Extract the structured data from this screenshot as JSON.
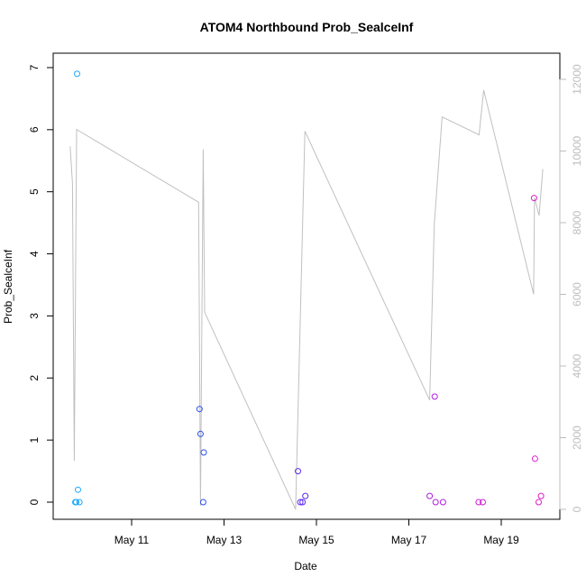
{
  "chart_data": {
    "type": "scatter",
    "title": "ATOM4 Northbound Prob_SealceInf",
    "xlabel": "Date",
    "ylabel": "Prob_SealceInf",
    "x_domain_days": [
      9.5,
      19.93
    ],
    "x_ticks": [
      {
        "value": 11,
        "label": "May 11"
      },
      {
        "value": 13,
        "label": "May 13"
      },
      {
        "value": 15,
        "label": "May 15"
      },
      {
        "value": 17,
        "label": "May 17"
      },
      {
        "value": 19,
        "label": "May 19"
      }
    ],
    "ylim": [
      0,
      7
    ],
    "y_ticks": [
      0,
      1,
      2,
      3,
      4,
      5,
      6,
      7
    ],
    "y2_ticks": [
      0,
      2000,
      4000,
      6000,
      8000,
      10000,
      12000
    ],
    "y2lim": [
      0,
      12000
    ],
    "line_color": "#c0c0c0",
    "points": [
      {
        "x": 9.78,
        "y": 0.0,
        "color": "#1aa7ff"
      },
      {
        "x": 9.82,
        "y": 6.9,
        "color": "#1aa7ff"
      },
      {
        "x": 9.84,
        "y": 0.2,
        "color": "#1aa7ff"
      },
      {
        "x": 9.87,
        "y": 0.0,
        "color": "#1aa7ff"
      },
      {
        "x": 9.8,
        "y": 0.0,
        "color": "#1aa7ff"
      },
      {
        "x": 12.47,
        "y": 1.5,
        "color": "#2a4ff0"
      },
      {
        "x": 12.49,
        "y": 1.1,
        "color": "#2a4ff0"
      },
      {
        "x": 12.56,
        "y": 0.8,
        "color": "#2a4ff0"
      },
      {
        "x": 12.55,
        "y": 0.0,
        "color": "#2a4ff0"
      },
      {
        "x": 14.6,
        "y": 0.5,
        "color": "#5b2bf0"
      },
      {
        "x": 14.65,
        "y": 0.0,
        "color": "#5b2bf0"
      },
      {
        "x": 14.7,
        "y": 0.0,
        "color": "#5b2bf0"
      },
      {
        "x": 14.76,
        "y": 0.1,
        "color": "#5b2bf0"
      },
      {
        "x": 17.45,
        "y": 0.1,
        "color": "#b01ee0"
      },
      {
        "x": 17.56,
        "y": 1.7,
        "color": "#b01ee0"
      },
      {
        "x": 17.58,
        "y": 0.0,
        "color": "#b01ee0"
      },
      {
        "x": 17.74,
        "y": 0.0,
        "color": "#b01ee0"
      },
      {
        "x": 18.51,
        "y": 0.0,
        "color": "#cc1ed0"
      },
      {
        "x": 18.6,
        "y": 0.0,
        "color": "#cc1ed0"
      },
      {
        "x": 19.71,
        "y": 4.9,
        "color": "#e01ec8"
      },
      {
        "x": 19.73,
        "y": 0.7,
        "color": "#e01ec8"
      },
      {
        "x": 19.81,
        "y": 0.0,
        "color": "#e01ec8"
      },
      {
        "x": 19.86,
        "y": 0.1,
        "color": "#e01ec8"
      }
    ],
    "series_line": [
      {
        "x": 9.67,
        "y2": 10130
      },
      {
        "x": 9.72,
        "y2": 9100
      },
      {
        "x": 9.76,
        "y2": 1350
      },
      {
        "x": 9.81,
        "y2": 10600
      },
      {
        "x": 12.45,
        "y2": 8570
      },
      {
        "x": 12.49,
        "y2": 100
      },
      {
        "x": 12.55,
        "y2": 10050
      },
      {
        "x": 12.58,
        "y2": 5500
      },
      {
        "x": 14.55,
        "y2": 0
      },
      {
        "x": 14.75,
        "y2": 10550
      },
      {
        "x": 17.45,
        "y2": 3050
      },
      {
        "x": 17.55,
        "y2": 7950
      },
      {
        "x": 17.72,
        "y2": 10950
      },
      {
        "x": 18.52,
        "y2": 10450
      },
      {
        "x": 18.62,
        "y2": 11700
      },
      {
        "x": 19.7,
        "y2": 6000
      },
      {
        "x": 19.72,
        "y2": 8700
      },
      {
        "x": 19.82,
        "y2": 8200
      },
      {
        "x": 19.9,
        "y2": 9500
      }
    ]
  }
}
